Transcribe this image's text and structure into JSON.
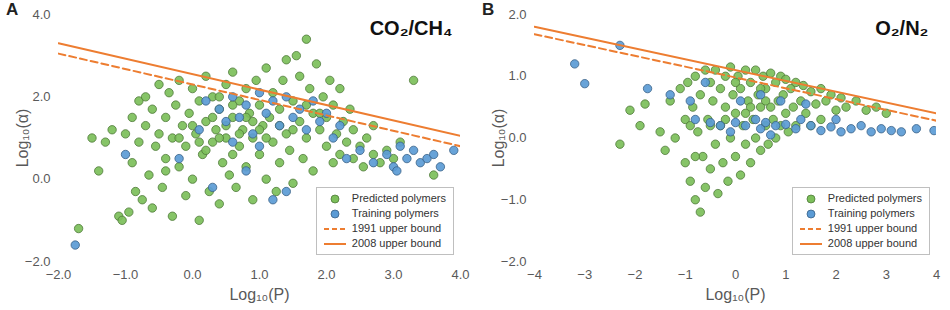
{
  "chart_data": [
    {
      "type": "scatter",
      "panel_label": "A",
      "title": "CO₂/CH₄",
      "x_label": "Log₁₀(P)",
      "y_label": "Log₁₀(α)",
      "xlim": [
        -2,
        4
      ],
      "xticks": [
        -2,
        -1,
        0,
        1,
        2,
        3,
        4
      ],
      "ylim": [
        -2,
        4
      ],
      "yticks": [
        -2,
        0,
        2,
        4
      ],
      "grid": false,
      "legend": "bottom-right",
      "series": [
        {
          "name": "Predicted polymers",
          "type": "scatter",
          "marker": "circle",
          "color": "#7cbf5a",
          "x": [
            -1.7,
            -1.5,
            -1.4,
            -1.3,
            -1.2,
            -1.1,
            -1.05,
            -1.0,
            -0.95,
            -0.9,
            -0.9,
            -0.85,
            -0.8,
            -0.8,
            -0.75,
            -0.7,
            -0.7,
            -0.65,
            -0.6,
            -0.6,
            -0.55,
            -0.5,
            -0.5,
            -0.45,
            -0.4,
            -0.4,
            -0.35,
            -0.3,
            -0.3,
            -0.25,
            -0.2,
            -0.2,
            -0.15,
            -0.1,
            -0.1,
            -0.05,
            0.0,
            0.0,
            0.05,
            0.1,
            0.1,
            0.15,
            0.2,
            0.2,
            0.25,
            0.3,
            0.3,
            0.35,
            0.4,
            0.4,
            0.45,
            0.5,
            0.5,
            0.55,
            0.6,
            0.6,
            0.65,
            0.7,
            0.7,
            0.75,
            0.8,
            0.8,
            0.85,
            0.9,
            0.9,
            0.95,
            1.0,
            1.0,
            1.05,
            1.1,
            1.1,
            1.15,
            1.2,
            1.2,
            1.25,
            1.3,
            1.3,
            1.35,
            1.4,
            1.4,
            1.45,
            1.5,
            1.5,
            1.55,
            1.6,
            1.6,
            1.65,
            1.7,
            1.7,
            1.75,
            1.8,
            1.8,
            1.85,
            1.9,
            1.95,
            2.0,
            2.0,
            2.05,
            2.1,
            2.1,
            2.15,
            2.2,
            2.2,
            2.25,
            2.3,
            2.35,
            2.4,
            2.4,
            2.5,
            2.55,
            2.6,
            2.7,
            2.8,
            3.3,
            3.6,
            0.3,
            0.5,
            0.7,
            0.9,
            1.1,
            0.2,
            0.4,
            0.6,
            0.8,
            1.0,
            -0.2,
            0.0,
            0.1,
            1.3,
            1.5,
            1.7,
            1.9,
            0.4,
            0.6,
            -0.4,
            2.7,
            2.9,
            3.0,
            3.1
          ],
          "values": [
            -1.2,
            1.0,
            0.2,
            0.9,
            1.2,
            -0.9,
            -1.0,
            1.1,
            -0.8,
            0.4,
            1.5,
            -0.3,
            1.9,
            0.9,
            -0.5,
            1.3,
            2.0,
            0.1,
            1.7,
            -0.7,
            0.8,
            2.3,
            1.1,
            -0.2,
            1.5,
            0.5,
            2.1,
            -0.9,
            1.0,
            1.8,
            0.3,
            2.4,
            1.3,
            -0.4,
            0.8,
            1.6,
            2.2,
            0.0,
            1.1,
            -1.0,
            1.9,
            0.6,
            2.5,
            1.4,
            -0.3,
            0.9,
            2.0,
            1.2,
            -0.6,
            1.7,
            0.4,
            2.3,
            1.0,
            0.1,
            1.5,
            2.6,
            -0.2,
            0.8,
            1.9,
            1.2,
            2.2,
            0.3,
            1.6,
            -0.5,
            1.0,
            2.4,
            0.6,
            1.8,
            1.3,
            2.7,
            0.0,
            1.5,
            0.9,
            2.1,
            -0.3,
            1.7,
            0.4,
            2.4,
            1.1,
            2.9,
            0.7,
            1.9,
            -0.1,
            3.0,
            1.4,
            2.5,
            0.5,
            3.4,
            1.0,
            2.2,
            1.6,
            0.2,
            2.8,
            1.2,
            2.0,
            0.8,
            1.5,
            2.4,
            0.4,
            1.8,
            1.1,
            2.2,
            0.6,
            1.4,
            0.9,
            1.7,
            0.5,
            1.2,
            0.8,
            0.3,
            1.0,
            0.6,
            0.4,
            2.4,
            0.1,
            1.5,
            1.3,
            1.1,
            1.4,
            1.0,
            0.7,
            1.0,
            0.6,
            1.5,
            1.2,
            1.0,
            1.3,
            0.9,
            1.3,
            1.2,
            1.8,
            1.6,
            2.0,
            1.8,
            0.2,
            1.3,
            0.7,
            0.5,
            0.9
          ]
        },
        {
          "name": "Training polymers",
          "type": "scatter",
          "marker": "circle",
          "color": "#5b9bd5",
          "x": [
            -1.75,
            -1.0,
            -0.2,
            0.1,
            0.2,
            0.4,
            0.5,
            0.6,
            0.7,
            0.8,
            0.9,
            1.0,
            1.1,
            1.2,
            1.3,
            1.4,
            1.5,
            1.6,
            1.7,
            1.8,
            1.9,
            2.0,
            2.1,
            2.2,
            1.0,
            0.8,
            1.4,
            1.2,
            0.6,
            2.3,
            2.5,
            2.7,
            2.9,
            3.0,
            3.1,
            3.2,
            3.3,
            3.4,
            3.5,
            3.6,
            3.7,
            3.9,
            3.05,
            0.3
          ],
          "values": [
            -1.6,
            0.6,
            0.5,
            1.2,
            1.9,
            1.7,
            1.4,
            2.0,
            1.5,
            1.8,
            1.1,
            2.1,
            1.6,
            1.9,
            1.3,
            2.0,
            1.5,
            1.7,
            1.2,
            1.9,
            1.4,
            1.6,
            1.0,
            1.3,
            0.8,
            0.2,
            -0.3,
            -0.5,
            0.9,
            0.5,
            0.7,
            0.4,
            0.6,
            0.3,
            0.8,
            0.5,
            0.7,
            0.4,
            0.5,
            0.6,
            0.3,
            0.7,
            0.2,
            -0.2
          ]
        },
        {
          "name": "1991 upper bound",
          "type": "line",
          "line_style": "dashed",
          "color": "#ed7d31",
          "x": [
            -2,
            4
          ],
          "values": [
            3.05,
            0.8
          ]
        },
        {
          "name": "2008 upper bound",
          "type": "line",
          "line_style": "solid",
          "color": "#ed7d31",
          "x": [
            -2,
            4
          ],
          "values": [
            3.3,
            1.05
          ]
        }
      ]
    },
    {
      "type": "scatter",
      "panel_label": "B",
      "title": "O₂/N₂",
      "x_label": "Log₁₀(P)",
      "y_label": "Log₁₀(α)",
      "xlim": [
        -4,
        4
      ],
      "xticks": [
        -4,
        -3,
        -2,
        -1,
        0,
        1,
        2,
        3,
        4
      ],
      "ylim": [
        -2,
        2
      ],
      "yticks": [
        -2,
        -1,
        0,
        1,
        2
      ],
      "grid": false,
      "legend": "bottom-right",
      "series": [
        {
          "name": "Predicted polymers",
          "type": "scatter",
          "marker": "circle",
          "color": "#7cbf5a",
          "x": [
            -2.3,
            -2.1,
            -1.9,
            -1.8,
            -1.5,
            -1.3,
            -1.2,
            -1.1,
            -1.0,
            -1.0,
            -0.95,
            -0.9,
            -0.85,
            -0.8,
            -0.8,
            -0.75,
            -0.7,
            -0.7,
            -0.65,
            -0.6,
            -0.6,
            -0.55,
            -0.5,
            -0.5,
            -0.45,
            -0.4,
            -0.4,
            -0.35,
            -0.3,
            -0.3,
            -0.25,
            -0.2,
            -0.2,
            -0.15,
            -0.1,
            -0.1,
            -0.05,
            0.0,
            0.0,
            0.05,
            0.1,
            0.1,
            0.15,
            0.2,
            0.2,
            0.25,
            0.3,
            0.3,
            0.35,
            0.4,
            0.4,
            0.45,
            0.5,
            0.5,
            0.55,
            0.6,
            0.6,
            0.65,
            0.7,
            0.7,
            0.75,
            0.8,
            0.8,
            0.85,
            0.9,
            0.9,
            0.95,
            1.0,
            1.0,
            1.05,
            1.1,
            1.15,
            1.2,
            1.2,
            1.3,
            1.35,
            1.4,
            1.5,
            1.5,
            1.6,
            1.7,
            1.7,
            1.8,
            1.9,
            2.0,
            2.1,
            2.2,
            2.4,
            2.6,
            2.8,
            3.0,
            -0.5,
            0.0,
            0.3,
            -0.2,
            0.6,
            -0.8,
            -1.4,
            -0.9,
            0.2,
            0.5
          ],
          "values": [
            -0.1,
            0.45,
            0.2,
            0.55,
            0.1,
            0.6,
            0.0,
            0.8,
            0.3,
            -0.4,
            0.9,
            -0.7,
            0.5,
            1.0,
            -1.0,
            0.1,
            -1.2,
            0.7,
            -0.3,
            1.1,
            -0.8,
            0.3,
            0.9,
            -0.5,
            0.6,
            1.1,
            -0.1,
            -0.9,
            0.8,
            0.2,
            -0.4,
            1.0,
            0.5,
            -0.7,
            0.0,
            1.15,
            0.7,
            -0.3,
            0.4,
            1.0,
            -0.6,
            0.8,
            0.2,
            1.1,
            -0.1,
            0.6,
            -0.4,
            0.9,
            0.3,
            1.1,
            0.0,
            0.7,
            -0.2,
            0.5,
            1.0,
            0.2,
            0.8,
            -0.1,
            1.05,
            0.5,
            0.3,
            0.9,
            0.0,
            0.6,
            1.0,
            0.2,
            0.7,
            0.4,
            0.95,
            0.1,
            0.8,
            0.5,
            0.9,
            0.2,
            0.6,
            0.85,
            0.4,
            0.75,
            0.2,
            0.55,
            0.8,
            0.3,
            0.6,
            0.7,
            0.45,
            0.65,
            0.5,
            0.6,
            0.45,
            0.5,
            0.4,
            0.2,
            0.9,
            0.5,
            0.3,
            0.6,
            -0.3,
            -0.2,
            0.2,
            0.4,
            0.8
          ]
        },
        {
          "name": "Training polymers",
          "type": "scatter",
          "marker": "circle",
          "color": "#5b9bd5",
          "x": [
            -3.2,
            -3.0,
            -2.3,
            -1.75,
            -1.3,
            -0.9,
            -0.8,
            -0.5,
            -0.3,
            0.0,
            0.2,
            0.4,
            0.5,
            0.6,
            0.8,
            1.0,
            1.2,
            1.3,
            1.5,
            1.7,
            1.9,
            2.1,
            2.3,
            2.5,
            2.7,
            2.9,
            3.1,
            3.3,
            3.6,
            3.95,
            0.1,
            0.5,
            0.9,
            -0.6,
            1.4,
            2.0,
            -0.1,
            0.7
          ],
          "values": [
            1.2,
            0.88,
            1.5,
            0.8,
            0.7,
            0.6,
            0.3,
            0.25,
            0.2,
            0.25,
            0.2,
            0.3,
            0.15,
            0.25,
            0.2,
            0.22,
            0.15,
            0.3,
            0.2,
            0.12,
            0.18,
            0.1,
            0.15,
            0.2,
            0.1,
            0.15,
            0.12,
            0.1,
            0.15,
            0.12,
            0.6,
            0.7,
            0.6,
            0.9,
            0.55,
            0.3,
            0.1,
            0.05
          ]
        },
        {
          "name": "1991 upper bound",
          "type": "line",
          "line_style": "dashed",
          "color": "#ed7d31",
          "x": [
            -4,
            4
          ],
          "values": [
            1.68,
            0.28
          ]
        },
        {
          "name": "2008 upper bound",
          "type": "line",
          "line_style": "solid",
          "color": "#ed7d31",
          "x": [
            -4,
            4
          ],
          "values": [
            1.8,
            0.4
          ]
        }
      ]
    }
  ]
}
